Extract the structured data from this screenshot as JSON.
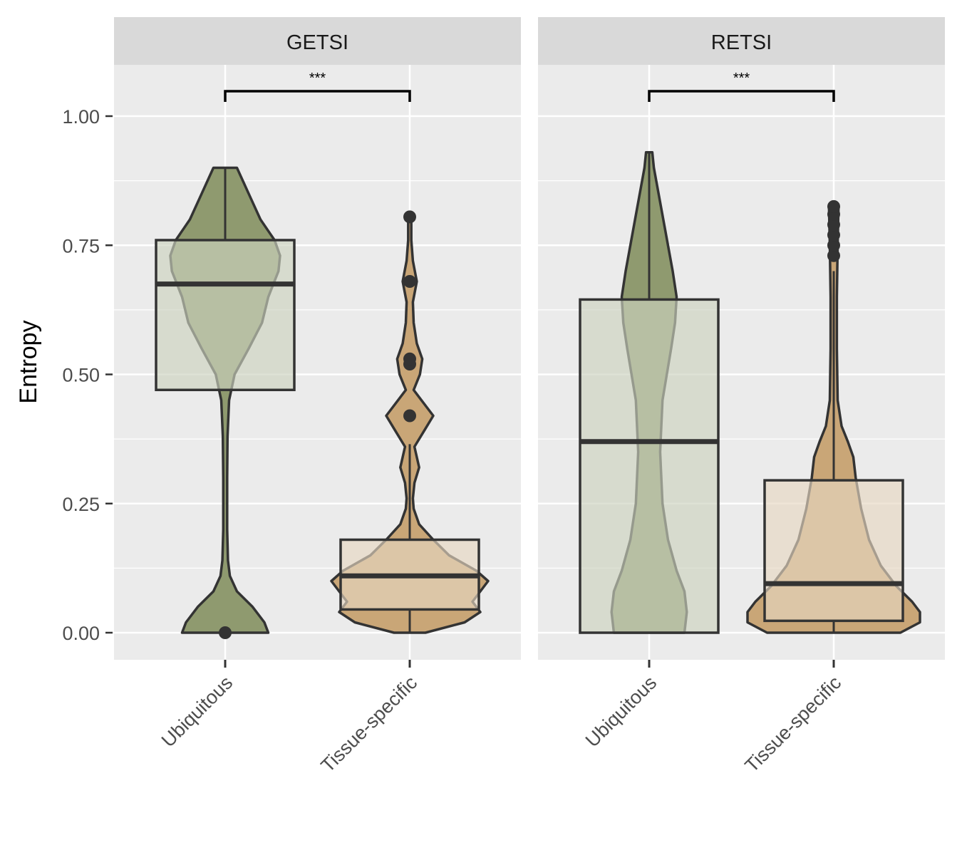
{
  "chart_data": {
    "type": "violin-box",
    "ylabel": "Entropy",
    "ylim": [
      -0.05,
      1.1
    ],
    "yticks": [
      0,
      0.25,
      0.5,
      0.75,
      1
    ],
    "ytick_labels": [
      "0.00",
      "0.25",
      "0.50",
      "0.75",
      "1.00"
    ],
    "categories": [
      "Ubiquitous",
      "Tissue-specific"
    ],
    "colors": {
      "Ubiquitous": "#8f9a6f",
      "Tissue-specific": "#c9a677"
    },
    "grid": true,
    "legend": "none",
    "panels": [
      {
        "label": "GETSI",
        "significance": "***",
        "groups": [
          {
            "name": "Ubiquitous",
            "box": {
              "q1": 0.47,
              "median": 0.675,
              "q3": 0.76,
              "whisker_low": 0.47,
              "whisker_high": 0.9
            },
            "outliers": [
              0.0
            ],
            "violin": [
              [
                0.0,
                0.055
              ],
              [
                0.02,
                0.05
              ],
              [
                0.05,
                0.035
              ],
              [
                0.08,
                0.015
              ],
              [
                0.11,
                0.006
              ],
              [
                0.14,
                0.0035
              ],
              [
                0.2,
                0.0025
              ],
              [
                0.3,
                0.0025
              ],
              [
                0.38,
                0.003
              ],
              [
                0.45,
                0.005
              ],
              [
                0.5,
                0.012
              ],
              [
                0.55,
                0.03
              ],
              [
                0.6,
                0.047
              ],
              [
                0.65,
                0.055
              ],
              [
                0.7,
                0.068
              ],
              [
                0.73,
                0.07
              ],
              [
                0.76,
                0.063
              ],
              [
                0.8,
                0.045
              ],
              [
                0.85,
                0.03
              ],
              [
                0.9,
                0.015
              ]
            ]
          },
          {
            "name": "Tissue-specific",
            "box": {
              "q1": 0.045,
              "median": 0.11,
              "q3": 0.18,
              "whisker_low": 0.0,
              "whisker_high": 0.365
            },
            "outliers": [
              0.42,
              0.52,
              0.53,
              0.68,
              0.805
            ],
            "violin": [
              [
                0.0,
                0.02
              ],
              [
                0.02,
                0.07
              ],
              [
                0.04,
                0.09
              ],
              [
                0.06,
                0.08
              ],
              [
                0.08,
                0.09
              ],
              [
                0.1,
                0.1
              ],
              [
                0.12,
                0.085
              ],
              [
                0.15,
                0.05
              ],
              [
                0.18,
                0.03
              ],
              [
                0.21,
                0.012
              ],
              [
                0.24,
                0.005
              ],
              [
                0.26,
                0.004
              ],
              [
                0.29,
                0.006
              ],
              [
                0.32,
                0.012
              ],
              [
                0.36,
                0.006
              ],
              [
                0.39,
                0.018
              ],
              [
                0.42,
                0.03
              ],
              [
                0.45,
                0.015
              ],
              [
                0.47,
                0.005
              ],
              [
                0.5,
                0.013
              ],
              [
                0.53,
                0.016
              ],
              [
                0.56,
                0.009
              ],
              [
                0.6,
                0.005
              ],
              [
                0.64,
                0.004
              ],
              [
                0.68,
                0.009
              ],
              [
                0.72,
                0.004
              ],
              [
                0.76,
                0.002
              ],
              [
                0.805,
                0.002
              ]
            ]
          }
        ]
      },
      {
        "label": "RETSI",
        "significance": "***",
        "groups": [
          {
            "name": "Ubiquitous",
            "box": {
              "q1": 0.0,
              "median": 0.37,
              "q3": 0.645,
              "whisker_low": 0.0,
              "whisker_high": 0.93
            },
            "outliers": [],
            "violin": [
              [
                0.0,
                0.045
              ],
              [
                0.04,
                0.048
              ],
              [
                0.08,
                0.045
              ],
              [
                0.12,
                0.035
              ],
              [
                0.18,
                0.024
              ],
              [
                0.25,
                0.017
              ],
              [
                0.35,
                0.014
              ],
              [
                0.45,
                0.017
              ],
              [
                0.55,
                0.028
              ],
              [
                0.6,
                0.033
              ],
              [
                0.65,
                0.035
              ],
              [
                0.7,
                0.03
              ],
              [
                0.8,
                0.018
              ],
              [
                0.9,
                0.006
              ],
              [
                0.93,
                0.004
              ]
            ]
          },
          {
            "name": "Tissue-specific",
            "box": {
              "q1": 0.023,
              "median": 0.095,
              "q3": 0.295,
              "whisker_low": 0.0,
              "whisker_high": 0.7
            },
            "outliers": [
              0.73,
              0.75,
              0.77,
              0.79,
              0.81,
              0.825
            ],
            "violin": [
              [
                0.0,
                0.085
              ],
              [
                0.02,
                0.11
              ],
              [
                0.04,
                0.11
              ],
              [
                0.06,
                0.1
              ],
              [
                0.09,
                0.08
              ],
              [
                0.13,
                0.06
              ],
              [
                0.18,
                0.045
              ],
              [
                0.24,
                0.035
              ],
              [
                0.3,
                0.028
              ],
              [
                0.34,
                0.025
              ],
              [
                0.37,
                0.018
              ],
              [
                0.4,
                0.01
              ],
              [
                0.45,
                0.005
              ],
              [
                0.55,
                0.004
              ],
              [
                0.65,
                0.004
              ],
              [
                0.75,
                0.005
              ],
              [
                0.82,
                0.006
              ]
            ]
          }
        ]
      }
    ]
  }
}
